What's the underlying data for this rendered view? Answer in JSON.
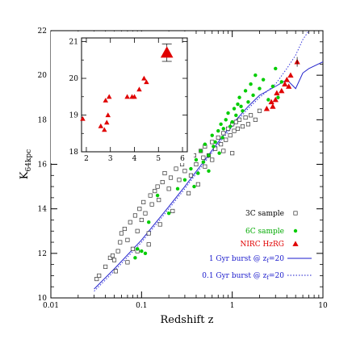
{
  "chart_data": {
    "type": "scatter",
    "xlabel": "Redshift z",
    "ylabel_main": "K",
    "ylabel_sub": "64kpc",
    "x_scale": "log",
    "xlim": [
      0.01,
      10
    ],
    "ylim": [
      10,
      22
    ],
    "x_ticks": [
      {
        "value": 0.01,
        "label": "0.01"
      },
      {
        "value": 0.1,
        "label": "0.1"
      },
      {
        "value": 1,
        "label": "1"
      },
      {
        "value": 10,
        "label": "10"
      }
    ],
    "y_ticks": [
      {
        "value": 10,
        "label": "10"
      },
      {
        "value": 12,
        "label": "12"
      },
      {
        "value": 14,
        "label": "14"
      },
      {
        "value": 16,
        "label": "16"
      },
      {
        "value": 18,
        "label": "18"
      },
      {
        "value": 20,
        "label": "20"
      },
      {
        "value": 22,
        "label": "22"
      }
    ],
    "series": [
      {
        "name": "3C sample",
        "marker": "open-square",
        "color": "#333333",
        "points": [
          [
            0.032,
            10.85
          ],
          [
            0.034,
            11.0
          ],
          [
            0.04,
            11.4
          ],
          [
            0.045,
            11.8
          ],
          [
            0.048,
            11.9
          ],
          [
            0.05,
            11.7
          ],
          [
            0.052,
            11.2
          ],
          [
            0.055,
            12.1
          ],
          [
            0.058,
            12.5
          ],
          [
            0.06,
            12.9
          ],
          [
            0.065,
            13.1
          ],
          [
            0.07,
            12.6
          ],
          [
            0.075,
            13.4
          ],
          [
            0.08,
            12.2
          ],
          [
            0.085,
            13.7
          ],
          [
            0.09,
            13.0
          ],
          [
            0.095,
            14.0
          ],
          [
            0.1,
            13.5
          ],
          [
            0.105,
            14.3
          ],
          [
            0.11,
            13.8
          ],
          [
            0.12,
            12.9
          ],
          [
            0.125,
            14.6
          ],
          [
            0.13,
            14.2
          ],
          [
            0.14,
            14.8
          ],
          [
            0.15,
            15.0
          ],
          [
            0.155,
            14.4
          ],
          [
            0.16,
            13.3
          ],
          [
            0.17,
            15.2
          ],
          [
            0.18,
            15.6
          ],
          [
            0.2,
            14.9
          ],
          [
            0.21,
            15.4
          ],
          [
            0.22,
            13.9
          ],
          [
            0.24,
            15.8
          ],
          [
            0.26,
            15.3
          ],
          [
            0.28,
            16.0
          ],
          [
            0.3,
            15.7
          ],
          [
            0.32,
            16.2
          ],
          [
            0.35,
            15.5
          ],
          [
            0.38,
            16.4
          ],
          [
            0.4,
            16.0
          ],
          [
            0.42,
            15.1
          ],
          [
            0.45,
            16.6
          ],
          [
            0.48,
            16.3
          ],
          [
            0.5,
            16.8
          ],
          [
            0.55,
            16.4
          ],
          [
            0.6,
            17.0
          ],
          [
            0.65,
            16.7
          ],
          [
            0.7,
            17.2
          ],
          [
            0.75,
            16.9
          ],
          [
            0.8,
            17.4
          ],
          [
            0.85,
            17.1
          ],
          [
            0.9,
            17.6
          ],
          [
            0.95,
            17.3
          ],
          [
            1.0,
            17.8
          ],
          [
            1.05,
            17.5
          ],
          [
            1.1,
            17.9
          ],
          [
            1.15,
            17.6
          ],
          [
            1.2,
            18.0
          ],
          [
            1.3,
            17.7
          ],
          [
            1.4,
            18.1
          ],
          [
            1.5,
            17.8
          ],
          [
            1.6,
            18.2
          ],
          [
            1.8,
            18.0
          ],
          [
            2.0,
            18.4
          ],
          [
            0.12,
            12.4
          ],
          [
            0.09,
            12.1
          ],
          [
            0.07,
            11.6
          ],
          [
            0.5,
            15.9
          ],
          [
            0.6,
            16.2
          ],
          [
            0.8,
            16.6
          ],
          [
            1.0,
            16.5
          ],
          [
            0.33,
            14.7
          ]
        ]
      },
      {
        "name": "6C sample",
        "marker": "filled-circle",
        "color": "#00cc00",
        "points": [
          [
            0.085,
            11.8
          ],
          [
            0.09,
            12.2
          ],
          [
            0.1,
            12.1
          ],
          [
            0.11,
            12.0
          ],
          [
            0.12,
            13.4
          ],
          [
            0.15,
            14.6
          ],
          [
            0.2,
            13.8
          ],
          [
            0.25,
            14.9
          ],
          [
            0.3,
            15.3
          ],
          [
            0.35,
            15.8
          ],
          [
            0.4,
            16.2
          ],
          [
            0.45,
            16.6
          ],
          [
            0.5,
            16.9
          ],
          [
            0.55,
            16.4
          ],
          [
            0.6,
            17.3
          ],
          [
            0.65,
            17.0
          ],
          [
            0.7,
            17.5
          ],
          [
            0.75,
            17.8
          ],
          [
            0.8,
            17.6
          ],
          [
            0.85,
            18.0
          ],
          [
            0.9,
            18.3
          ],
          [
            1.0,
            17.9
          ],
          [
            1.05,
            18.5
          ],
          [
            1.1,
            18.2
          ],
          [
            1.15,
            18.7
          ],
          [
            1.2,
            19.0
          ],
          [
            1.3,
            18.4
          ],
          [
            1.4,
            19.3
          ],
          [
            1.5,
            18.8
          ],
          [
            1.6,
            19.6
          ],
          [
            1.7,
            19.1
          ],
          [
            1.8,
            20.0
          ],
          [
            2.0,
            19.4
          ],
          [
            2.2,
            19.8
          ],
          [
            2.5,
            18.9
          ],
          [
            2.8,
            19.5
          ],
          [
            3.0,
            20.3
          ],
          [
            3.2,
            19.0
          ],
          [
            3.5,
            19.7
          ],
          [
            0.42,
            15.6
          ],
          [
            0.48,
            16.1
          ],
          [
            0.62,
            16.8
          ],
          [
            0.78,
            17.2
          ],
          [
            0.95,
            17.7
          ],
          [
            1.25,
            18.6
          ],
          [
            0.38,
            15.0
          ],
          [
            0.55,
            15.7
          ],
          [
            0.72,
            16.5
          ]
        ]
      },
      {
        "name": "NIRC HzRG",
        "marker": "filled-triangle",
        "color": "#e00000",
        "points": [
          [
            2.4,
            18.5
          ],
          [
            2.7,
            18.8
          ],
          [
            2.8,
            18.6
          ],
          [
            3.0,
            18.9
          ],
          [
            3.1,
            19.2
          ],
          [
            3.5,
            19.3
          ],
          [
            3.8,
            19.6
          ],
          [
            4.0,
            19.8
          ],
          [
            4.2,
            19.5
          ],
          [
            4.4,
            20.0
          ],
          [
            5.2,
            20.6
          ]
        ]
      }
    ],
    "lines": [
      {
        "name": "1 Gyr burst @ z",
        "subscript": "f",
        "suffix": "=20",
        "style": "solid",
        "color": "#2222cc",
        "points": [
          [
            0.03,
            10.4
          ],
          [
            0.05,
            11.3
          ],
          [
            0.1,
            12.6
          ],
          [
            0.2,
            14.1
          ],
          [
            0.3,
            15.0
          ],
          [
            0.5,
            16.2
          ],
          [
            0.7,
            17.0
          ],
          [
            1.0,
            17.8
          ],
          [
            1.5,
            18.6
          ],
          [
            2.0,
            19.1
          ],
          [
            3.0,
            19.5
          ],
          [
            4.0,
            19.8
          ],
          [
            5.0,
            19.4
          ],
          [
            6.0,
            20.1
          ],
          [
            7.0,
            20.3
          ],
          [
            10.0,
            20.6
          ]
        ]
      },
      {
        "name": "0.1 Gyr burst @ z",
        "subscript": "f",
        "suffix": "=20",
        "style": "dotted",
        "color": "#3333dd",
        "points": [
          [
            0.03,
            10.3
          ],
          [
            0.05,
            11.2
          ],
          [
            0.1,
            12.5
          ],
          [
            0.2,
            14.0
          ],
          [
            0.3,
            14.9
          ],
          [
            0.5,
            16.1
          ],
          [
            0.7,
            16.9
          ],
          [
            1.0,
            17.7
          ],
          [
            1.5,
            18.5
          ],
          [
            2.0,
            19.0
          ],
          [
            3.0,
            19.6
          ],
          [
            4.0,
            20.3
          ],
          [
            5.0,
            20.9
          ],
          [
            6.0,
            21.6
          ],
          [
            7.0,
            22.0
          ]
        ]
      }
    ],
    "inset": {
      "xlim": [
        1.8,
        6.2
      ],
      "ylim": [
        18,
        21.1
      ],
      "x_ticks": [
        {
          "value": 2,
          "label": "2"
        },
        {
          "value": 3,
          "label": "3"
        },
        {
          "value": 4,
          "label": "4"
        },
        {
          "value": 5,
          "label": "5"
        },
        {
          "value": 6,
          "label": "6"
        }
      ],
      "y_ticks": [
        {
          "value": 18,
          "label": "18"
        },
        {
          "value": 19,
          "label": "19"
        },
        {
          "value": 20,
          "label": "20"
        },
        {
          "value": 21,
          "label": "21"
        }
      ],
      "points": [
        [
          1.85,
          18.9
        ],
        [
          2.6,
          18.7
        ],
        [
          2.75,
          18.6
        ],
        [
          2.85,
          18.8
        ],
        [
          2.9,
          19.0
        ],
        [
          2.95,
          19.5
        ],
        [
          2.8,
          19.4
        ],
        [
          3.7,
          19.5
        ],
        [
          3.9,
          19.5
        ],
        [
          4.0,
          19.5
        ],
        [
          4.2,
          19.7
        ],
        [
          4.4,
          20.0
        ],
        [
          4.5,
          19.9
        ]
      ],
      "highlight": {
        "x": 5.35,
        "y": 20.7,
        "err": 0.15
      }
    }
  }
}
